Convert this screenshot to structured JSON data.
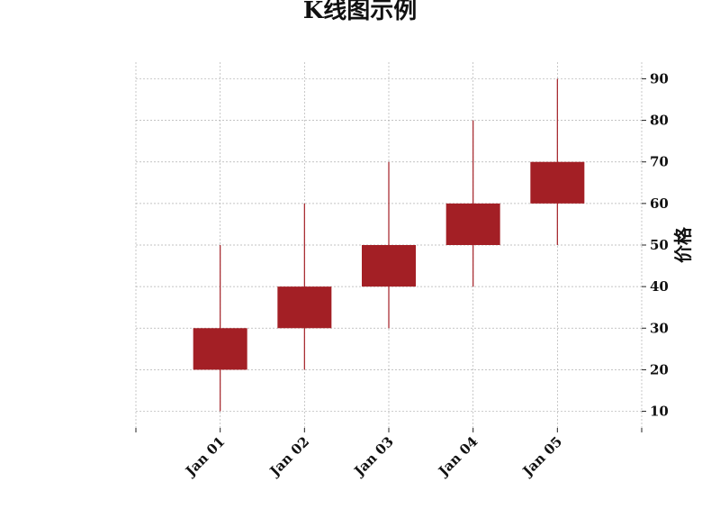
{
  "chart_data": {
    "type": "candlestick",
    "title": "K线图示例",
    "xlabel": "",
    "ylabel": "价格",
    "categories": [
      "Jan 01",
      "Jan 02",
      "Jan 03",
      "Jan 04",
      "Jan 05"
    ],
    "candles": [
      {
        "date": "Jan 01",
        "open": 20,
        "close": 30,
        "low": 10,
        "high": 50
      },
      {
        "date": "Jan 02",
        "open": 30,
        "close": 40,
        "low": 20,
        "high": 60
      },
      {
        "date": "Jan 03",
        "open": 40,
        "close": 50,
        "low": 30,
        "high": 70
      },
      {
        "date": "Jan 04",
        "open": 50,
        "close": 60,
        "low": 40,
        "high": 80
      },
      {
        "date": "Jan 05",
        "open": 60,
        "close": 70,
        "low": 50,
        "high": 90
      }
    ],
    "y_ticks": [
      10,
      20,
      30,
      40,
      50,
      60,
      70,
      80,
      90
    ],
    "ylim": [
      6,
      94
    ],
    "xlim_days": [
      -1,
      5
    ],
    "y_axis_side": "right",
    "grid": true,
    "candle_color": "#a31f25",
    "grid_color": "#b0b0b0"
  }
}
